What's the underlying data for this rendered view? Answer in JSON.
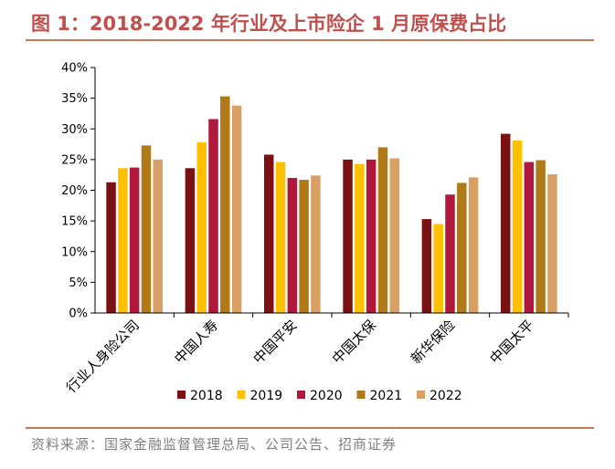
{
  "title": "图 1：2018-2022 年行业及上市险企 1 月原保费占比",
  "source": "资料来源：国家金融监督管理总局、公司公告、招商证券",
  "chart_data": {
    "type": "bar",
    "title": "图 1：2018-2022 年行业及上市险企 1 月原保费占比",
    "xlabel": "",
    "ylabel": "",
    "ylim": [
      0,
      40
    ],
    "yticks": [
      "0%",
      "5%",
      "10%",
      "15%",
      "20%",
      "25%",
      "30%",
      "35%",
      "40%"
    ],
    "categories": [
      "行业人身险公司",
      "中国人寿",
      "中国平安",
      "中国太保",
      "新华保险",
      "中国太平"
    ],
    "series": [
      {
        "name": "2018",
        "color": "#7b1113",
        "values": [
          21.3,
          23.6,
          25.8,
          25.0,
          15.3,
          29.2
        ]
      },
      {
        "name": "2019",
        "color": "#ffc000",
        "values": [
          23.6,
          27.8,
          24.6,
          24.3,
          14.5,
          28.1
        ]
      },
      {
        "name": "2020",
        "color": "#b0173a",
        "values": [
          23.7,
          31.6,
          22.0,
          25.0,
          19.3,
          24.6
        ]
      },
      {
        "name": "2021",
        "color": "#b07a19",
        "values": [
          27.3,
          35.3,
          21.7,
          27.0,
          21.2,
          24.9
        ]
      },
      {
        "name": "2022",
        "color": "#d9a066",
        "values": [
          25.0,
          33.8,
          22.4,
          25.2,
          22.1,
          22.6
        ]
      }
    ],
    "legend_position": "bottom",
    "grid": false
  }
}
